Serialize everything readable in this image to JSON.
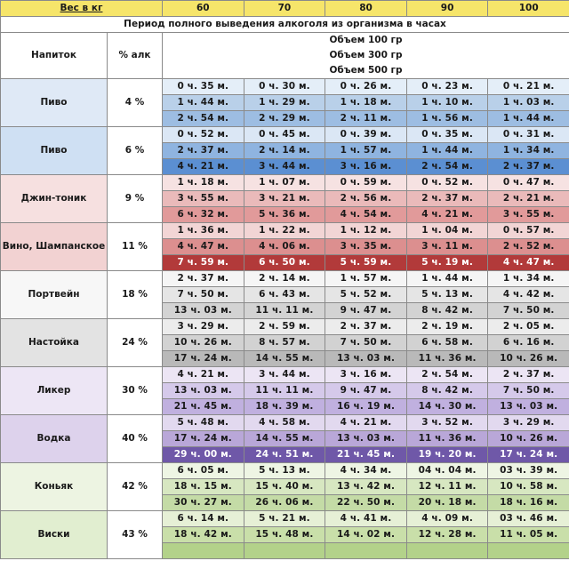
{
  "header": {
    "weight_label": "Вес в кг",
    "weights": [
      "60",
      "70",
      "80",
      "90",
      "100"
    ],
    "period_title": "Период полного выведения алкоголя из организма в часах",
    "drink_col": "Напиток",
    "alc_col": "% алк",
    "volumes": [
      "Объем 100 гр",
      "Объем 300 гр",
      "Объем 500 гр"
    ]
  },
  "colors": {
    "weight_row": "#f6e56a",
    "drink_cell": "#ffffff"
  },
  "drinks": [
    {
      "name": "Пиво",
      "alc": "4 %",
      "label_bg": "#dfe9f6",
      "bg": [
        "#e4eef8",
        "#b9d0e9",
        "#9dbde2"
      ],
      "rows": [
        [
          "0 ч. 35 м.",
          "0 ч. 30 м.",
          "0 ч. 26 м.",
          "0 ч. 23 м.",
          "0 ч. 21 м."
        ],
        [
          "1 ч. 44 м.",
          "1 ч. 29 м.",
          "1 ч. 18 м.",
          "1 ч. 10 м.",
          "1 ч. 03 м."
        ],
        [
          "2 ч. 54 м.",
          "2 ч. 29 м.",
          "2 ч. 11 м.",
          "1 ч. 56 м.",
          "1 ч. 44 м."
        ]
      ]
    },
    {
      "name": "Пиво",
      "alc": "6 %",
      "label_bg": "#cfe0f3",
      "bg": [
        "#dbe7f5",
        "#8fb4e0",
        "#5b8fd2"
      ],
      "rows": [
        [
          "0 ч. 52 м.",
          "0 ч. 45 м.",
          "0 ч. 39 м.",
          "0 ч. 35 м.",
          "0 ч. 31 м."
        ],
        [
          "2 ч. 37 м.",
          "2 ч. 14 м.",
          "1 ч. 57 м.",
          "1 ч. 44 м.",
          "1 ч. 34 м."
        ],
        [
          "4 ч. 21 м.",
          "3 ч. 44 м.",
          "3 ч. 16 м.",
          "2 ч. 54 м.",
          "2 ч. 37 м."
        ]
      ]
    },
    {
      "name": "Джин-тоник",
      "alc": "9 %",
      "label_bg": "#f6e0e0",
      "bg": [
        "#f6e2e2",
        "#eababa",
        "#e19a9a"
      ],
      "rows": [
        [
          "1 ч. 18 м.",
          "1 ч. 07 м.",
          "0 ч. 59 м.",
          "0 ч. 52 м.",
          "0 ч. 47 м."
        ],
        [
          "3 ч. 55 м.",
          "3 ч. 21 м.",
          "2 ч. 56 м.",
          "2 ч. 37 м.",
          "2 ч. 21 м."
        ],
        [
          "6 ч. 32 м.",
          "5 ч. 36 м.",
          "4 ч. 54 м.",
          "4 ч. 21 м.",
          "3 ч. 55 м."
        ]
      ]
    },
    {
      "name": "Вино, Шампанское",
      "alc": "11 %",
      "label_bg": "#f2d2d2",
      "bg": [
        "#f2d5d5",
        "#dc8f8f",
        "#b23a3a"
      ],
      "rows": [
        [
          "1 ч. 36 м.",
          "1 ч. 22 м.",
          "1 ч. 12 м.",
          "1 ч. 04 м.",
          "0 ч. 57 м."
        ],
        [
          "4 ч. 47 м.",
          "4 ч. 06 м.",
          "3 ч. 35 м.",
          "3 ч. 11 м.",
          "2 ч. 52 м."
        ],
        [
          "7 ч. 59 м.",
          "6 ч. 50 м.",
          "5 ч. 59 м.",
          "5 ч. 19 м.",
          "4 ч. 47 м."
        ]
      ]
    },
    {
      "name": "Портвейн",
      "alc": "18 %",
      "label_bg": "#f7f7f7",
      "bg": [
        "#f5f5f5",
        "#e5e5e5",
        "#d3d3d3"
      ],
      "rows": [
        [
          "2 ч. 37 м.",
          "2 ч. 14 м.",
          "1 ч. 57 м.",
          "1 ч. 44 м.",
          "1 ч. 34 м."
        ],
        [
          "7 ч. 50 м.",
          "6 ч. 43 м.",
          "5 ч. 52 м.",
          "5 ч. 13 м.",
          "4 ч. 42 м."
        ],
        [
          "13 ч. 03 м.",
          "11 ч. 11 м.",
          "9 ч. 47 м.",
          "8 ч. 42 м.",
          "7 ч. 50 м."
        ]
      ]
    },
    {
      "name": "Настойка",
      "alc": "24 %",
      "label_bg": "#e3e3e3",
      "bg": [
        "#ececec",
        "#d2d2d2",
        "#b9b9b9"
      ],
      "rows": [
        [
          "3 ч. 29 м.",
          "2 ч. 59 м.",
          "2 ч. 37 м.",
          "2 ч. 19 м.",
          "2 ч. 05 м."
        ],
        [
          "10 ч. 26 м.",
          "8 ч. 57 м.",
          "7 ч. 50 м.",
          "6 ч. 58 м.",
          "6 ч. 16 м."
        ],
        [
          "17 ч. 24 м.",
          "14 ч. 55 м.",
          "13 ч. 03 м.",
          "11 ч. 36 м.",
          "10 ч. 26 м."
        ]
      ]
    },
    {
      "name": "Ликер",
      "alc": "30 %",
      "label_bg": "#ede6f5",
      "bg": [
        "#ece5f4",
        "#d5c9ea",
        "#c0b0df"
      ],
      "rows": [
        [
          "4 ч. 21 м.",
          "3 ч. 44 м.",
          "3 ч. 16 м.",
          "2 ч. 54 м.",
          "2 ч. 37 м."
        ],
        [
          "13 ч. 03 м.",
          "11 ч. 11 м.",
          "9 ч. 47 м.",
          "8 ч. 42 м.",
          "7 ч. 50 м."
        ],
        [
          "21 ч. 45 м.",
          "18 ч. 39 м.",
          "16 ч. 19 м.",
          "14 ч. 30 м.",
          "13 ч. 03 м."
        ]
      ]
    },
    {
      "name": "Водка",
      "alc": "40 %",
      "label_bg": "#ddd2ec",
      "bg": [
        "#e2d9ef",
        "#b9a7d8",
        "#6f58a8"
      ],
      "rows": [
        [
          "5 ч. 48 м.",
          "4 ч. 58 м.",
          "4 ч. 21 м.",
          "3 ч. 52 м.",
          "3 ч. 29 м."
        ],
        [
          "17 ч. 24 м.",
          "14 ч. 55 м.",
          "13 ч. 03 м.",
          "11 ч. 36 м.",
          "10 ч. 26 м."
        ],
        [
          "29 ч. 00 м.",
          "24 ч. 51 м.",
          "21 ч. 45 м.",
          "19 ч. 20 м.",
          "17 ч. 24 м."
        ]
      ]
    },
    {
      "name": "Коньяк",
      "alc": "42 %",
      "label_bg": "#edf4e2",
      "bg": [
        "#eef5e4",
        "#d7e7c1",
        "#c4dba6"
      ],
      "rows": [
        [
          "6 ч. 05 м.",
          "5 ч. 13 м.",
          "4 ч. 34 м.",
          "04 ч. 04 м.",
          "03 ч. 39 м."
        ],
        [
          "18 ч. 15 м.",
          "15 ч. 40 м.",
          "13 ч. 42 м.",
          "12 ч. 11 м.",
          "10 ч. 58 м."
        ],
        [
          "30 ч. 27 м.",
          "26 ч. 06 м.",
          "22 ч. 50 м.",
          "20 ч. 18 м.",
          "18 ч. 16 м."
        ]
      ]
    },
    {
      "name": "Виски",
      "alc": "43 %",
      "label_bg": "#e1eed0",
      "bg": [
        "#e6f0d6",
        "#c9dfa9",
        "#b3d28a"
      ],
      "rows": [
        [
          "6 ч. 14 м.",
          "5 ч. 21 м.",
          "4 ч. 41 м.",
          "4 ч. 09 м.",
          "03 ч. 46 м."
        ],
        [
          "18 ч. 42 м.",
          "15 ч. 48 м.",
          "14 ч. 02 м.",
          "12 ч. 28 м.",
          "11 ч. 05 м."
        ],
        [
          "",
          "",
          "",
          "",
          ""
        ]
      ]
    }
  ]
}
